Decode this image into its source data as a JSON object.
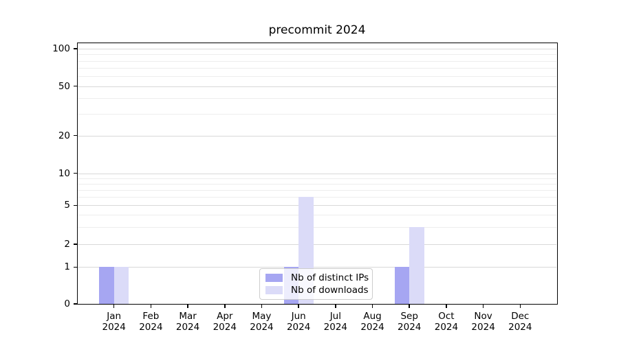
{
  "title": "precommit 2024",
  "colors": {
    "distinct_ips": "#a6a6f2",
    "downloads": "#dbdbf8",
    "grid_major": "#d8d8d8",
    "grid_minor": "#ededed",
    "axis": "#000000",
    "text": "#000000",
    "legend_border": "#cccccc"
  },
  "legend": {
    "items": [
      {
        "label": "Nb of distinct IPs",
        "color_key": "distinct_ips"
      },
      {
        "label": "Nb of downloads",
        "color_key": "downloads"
      }
    ]
  },
  "chart_data": {
    "type": "bar",
    "title": "precommit 2024",
    "categories": [
      "Jan 2024",
      "Feb 2024",
      "Mar 2024",
      "Apr 2024",
      "May 2024",
      "Jun 2024",
      "Jul 2024",
      "Aug 2024",
      "Sep 2024",
      "Oct 2024",
      "Nov 2024",
      "Dec 2024"
    ],
    "x_tick_month": [
      "Jan",
      "Feb",
      "Mar",
      "Apr",
      "May",
      "Jun",
      "Jul",
      "Aug",
      "Sep",
      "Oct",
      "Nov",
      "Dec"
    ],
    "x_tick_year": "2024",
    "series": [
      {
        "name": "Nb of distinct IPs",
        "values": [
          1,
          0,
          0,
          0,
          0,
          1,
          0,
          0,
          1,
          0,
          0,
          0
        ]
      },
      {
        "name": "Nb of downloads",
        "values": [
          1,
          0,
          0,
          0,
          0,
          6,
          0,
          0,
          3,
          0,
          0,
          0
        ]
      }
    ],
    "xlabel": "",
    "ylabel": "",
    "yscale": "symlog-like",
    "y_major_ticks": [
      0,
      1,
      2,
      5,
      10,
      20,
      50,
      100
    ],
    "y_minor_gridlines": [
      3,
      4,
      6,
      7,
      8,
      9,
      30,
      40,
      60,
      70,
      80,
      90
    ],
    "ylim": [
      0,
      120
    ],
    "grid": true,
    "legend_position": "lower-center"
  }
}
